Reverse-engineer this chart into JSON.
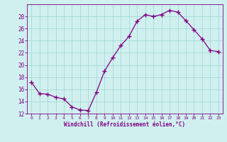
{
  "x": [
    0,
    1,
    2,
    3,
    4,
    5,
    6,
    7,
    8,
    9,
    10,
    11,
    12,
    13,
    14,
    15,
    16,
    17,
    18,
    19,
    20,
    21,
    22,
    23
  ],
  "y": [
    17.2,
    15.3,
    15.2,
    14.7,
    14.4,
    13.1,
    12.6,
    12.5,
    15.5,
    19.0,
    21.2,
    23.2,
    24.7,
    27.2,
    28.3,
    28.0,
    28.3,
    29.0,
    28.7,
    27.3,
    25.8,
    24.3,
    22.4,
    22.2
  ],
  "line_color": "#800080",
  "marker_color": "#800080",
  "bg_color": "#d0f0f0",
  "grid_color": "#a8d8d8",
  "axis_color": "#800080",
  "xlabel": "Windchill (Refroidissement éolien,°C)",
  "ylim": [
    12,
    30
  ],
  "xlim": [
    -0.5,
    23.5
  ],
  "yticks": [
    12,
    14,
    16,
    18,
    20,
    22,
    24,
    26,
    28
  ],
  "xticks": [
    0,
    1,
    2,
    3,
    4,
    5,
    6,
    7,
    8,
    9,
    10,
    11,
    12,
    13,
    14,
    15,
    16,
    17,
    18,
    19,
    20,
    21,
    22,
    23
  ],
  "xtick_labels": [
    "0",
    "1",
    "2",
    "3",
    "4",
    "5",
    "6",
    "7",
    "8",
    "9",
    "10",
    "11",
    "12",
    "13",
    "14",
    "15",
    "16",
    "17",
    "18",
    "19",
    "20",
    "21",
    "22",
    "23"
  ]
}
